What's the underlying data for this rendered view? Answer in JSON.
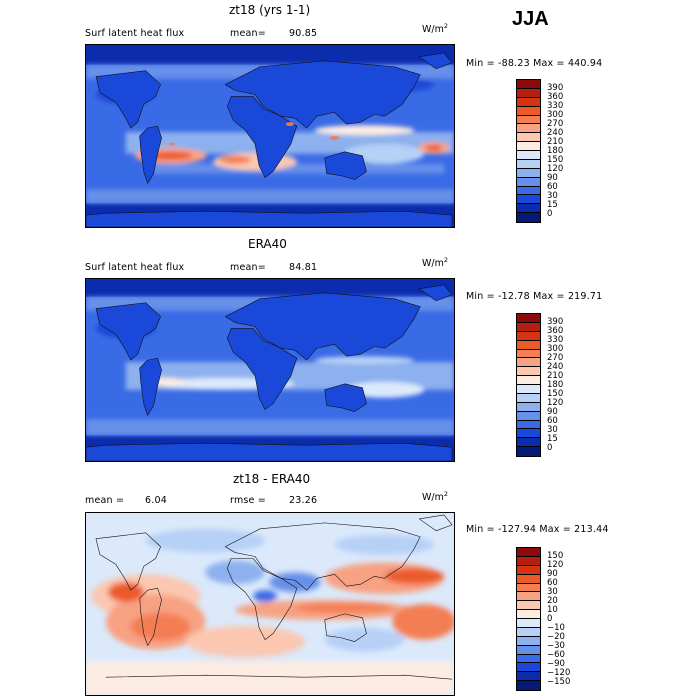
{
  "season": "JJA",
  "panels": [
    {
      "title": "zt18 (yrs 1-1)",
      "variable": "Surf latent heat flux",
      "stat_label": "mean=",
      "stat_value": "90.85",
      "units_base": "W/m",
      "units_exp": "2",
      "range_text": "Min = -88.23 Max = 440.94",
      "palette": "absolute"
    },
    {
      "title": "ERA40",
      "variable": "Surf latent heat flux",
      "stat_label": "mean=",
      "stat_value": "84.81",
      "units_base": "W/m",
      "units_exp": "2",
      "range_text": "Min = -12.78 Max = 219.71",
      "palette": "absolute"
    },
    {
      "title": "zt18 - ERA40",
      "mean_label": "mean =",
      "mean_value": "6.04",
      "rmse_label": "rmse =",
      "rmse_value": "23.26",
      "units_base": "W/m",
      "units_exp": "2",
      "range_text": "Min = -127.94 Max = 213.44",
      "palette": "difference"
    }
  ],
  "colorbars": {
    "absolute": {
      "levels": [
        "390",
        "360",
        "330",
        "300",
        "270",
        "240",
        "210",
        "180",
        "150",
        "120",
        "90",
        "60",
        "30",
        "15",
        "0"
      ],
      "colors": [
        "#8c0a0a",
        "#b51f0f",
        "#d63410",
        "#ec5a2a",
        "#f47e52",
        "#f7a283",
        "#fbc7b0",
        "#fdece2",
        "#dbe9fb",
        "#b6d0f6",
        "#8db0ee",
        "#6690ea",
        "#3a6be6",
        "#1a48d8",
        "#0c2cae",
        "#051a78"
      ]
    },
    "difference": {
      "levels": [
        "150",
        "120",
        "90",
        "60",
        "30",
        "20",
        "10",
        "0",
        "−10",
        "−20",
        "−30",
        "−60",
        "−90",
        "−120",
        "−150"
      ],
      "colors": [
        "#8c0a0a",
        "#b51f0f",
        "#d63410",
        "#ec5a2a",
        "#f47e52",
        "#f7a283",
        "#fbc7b0",
        "#fdece2",
        "#dbe9fb",
        "#b6d0f6",
        "#8db0ee",
        "#6690ea",
        "#3a6be6",
        "#1a48d8",
        "#0c2cae",
        "#051a78"
      ]
    }
  }
}
